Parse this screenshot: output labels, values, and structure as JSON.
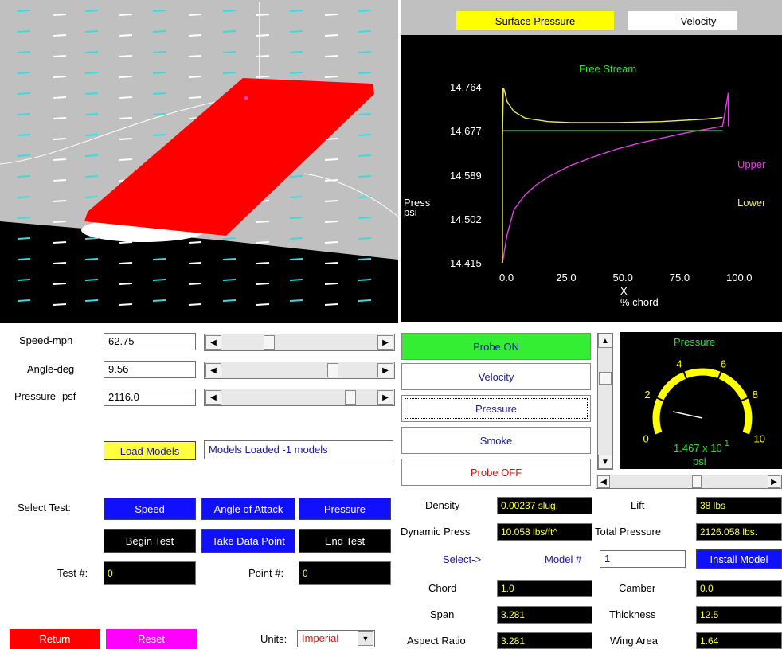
{
  "plot": {
    "tabs": {
      "surface_pressure": "Surface Pressure",
      "velocity": "Velocity"
    },
    "free_stream_label": "Free Stream",
    "ylabel_line1": "Press",
    "ylabel_line2": "psi",
    "xlabel_line1": "X",
    "xlabel_line2": "% chord",
    "legend_upper": "Upper",
    "legend_lower": "Lower",
    "yticks": [
      "14.764",
      "14.677",
      "14.589",
      "14.502",
      "14.415"
    ],
    "xticks": [
      "0.0",
      "25.0",
      "50.0",
      "75.0",
      "100.0"
    ]
  },
  "chart_data": {
    "type": "line",
    "xlabel": "X % chord",
    "ylabel": "Press psi",
    "xlim": [
      0,
      100
    ],
    "ylim": [
      14.415,
      14.764
    ],
    "series": [
      {
        "name": "Upper",
        "x": [
          0,
          2,
          5,
          10,
          15,
          20,
          30,
          40,
          50,
          60,
          70,
          80,
          90,
          97,
          99.5
        ],
        "y": [
          14.415,
          14.47,
          14.52,
          14.55,
          14.57,
          14.585,
          14.608,
          14.625,
          14.64,
          14.652,
          14.662,
          14.672,
          14.68,
          14.686,
          14.752
        ]
      },
      {
        "name": "Lower",
        "x": [
          0,
          0.4,
          1,
          2,
          5,
          10,
          20,
          30,
          50,
          70,
          90,
          97
        ],
        "y": [
          14.67,
          14.762,
          14.755,
          14.735,
          14.715,
          14.702,
          14.695,
          14.693,
          14.693,
          14.695,
          14.7,
          14.703
        ]
      },
      {
        "name": "Free Stream",
        "x": [
          0,
          97
        ],
        "y": [
          14.677,
          14.677
        ]
      }
    ]
  },
  "controls": {
    "speed_label": "Speed-mph",
    "speed_value": "62.75",
    "angle_label": "Angle-deg",
    "angle_value": "9.56",
    "pressure_label": "Pressure- psf",
    "pressure_value": "2116.0",
    "load_models": "Load Models",
    "models_status": "Models Loaded -1  models"
  },
  "probe": {
    "on": "Probe ON",
    "velocity": "Velocity",
    "pressure": "Pressure",
    "smoke": "Smoke",
    "off": "Probe OFF"
  },
  "gauge": {
    "title": "Pressure",
    "ticks": [
      "0",
      "2",
      "4",
      "6",
      "8",
      "10"
    ],
    "readout": "1.467 x 10",
    "exponent": "1",
    "unit": "psi",
    "value": 1.467,
    "max": 10
  },
  "test": {
    "select_label": "Select Test:",
    "speed_btn": "Speed",
    "aoa_btn": "Angle of Attack",
    "pressure_btn": "Pressure",
    "begin": "Begin Test",
    "take": "Take Data Point",
    "end": "End Test",
    "test_num_label": "Test #:",
    "test_num": "0",
    "point_num_label": "Point #:",
    "point_num": "0",
    "return_btn": "Return",
    "reset_btn": "Reset",
    "units_label": "Units:",
    "units_value": "Imperial"
  },
  "data": {
    "density_label": "Density",
    "density_value": "0.00237 slug.",
    "lift_label": "Lift",
    "lift_value": "38 lbs",
    "dyn_label": "Dynamic Press",
    "dyn_value": "10.058 lbs/ft^",
    "total_label": "Total Pressure",
    "total_value": "2126.058 lbs.",
    "select_label": "Select->",
    "model_label": "Model #",
    "model_value": "1",
    "install_btn": "Install Model",
    "chord_label": "Chord",
    "chord_value": "1.0",
    "camber_label": "Camber",
    "camber_value": "0.0",
    "span_label": "Span",
    "span_value": "3.281",
    "thick_label": "Thickness",
    "thick_value": "12.5",
    "ar_label": "Aspect Ratio",
    "ar_value": "3.281",
    "area_label": "Wing Area",
    "area_value": "1.64"
  },
  "colors": {
    "wing": "#ff0000",
    "plot_bg": "#000000",
    "upper": "#e040e0",
    "lower": "#e8e860",
    "free_stream": "#30e030",
    "gauge": "#ffff00",
    "probe_on": "#33ee33",
    "test_btn": "#1010ff"
  }
}
